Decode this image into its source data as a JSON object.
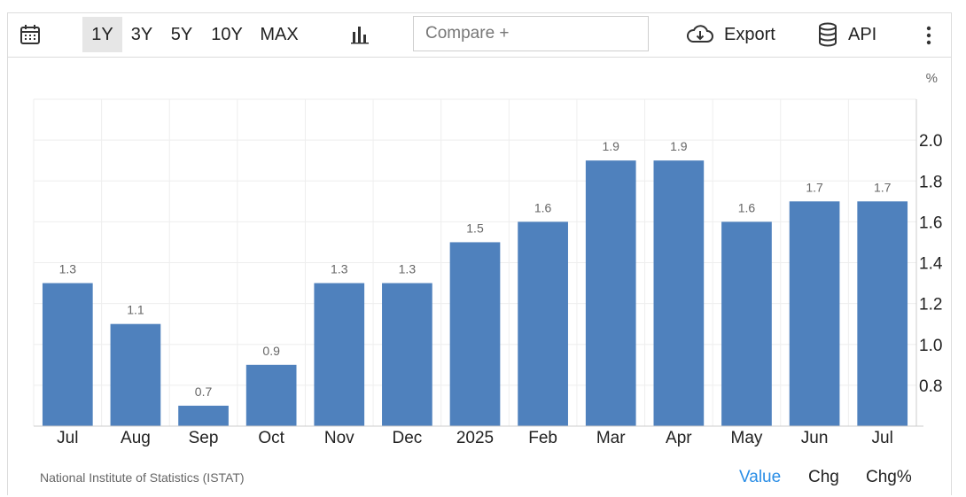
{
  "toolbar": {
    "ranges": [
      "1Y",
      "3Y",
      "5Y",
      "10Y",
      "MAX"
    ],
    "active_range": "1Y",
    "compare_placeholder": "Compare +",
    "export_label": "Export",
    "api_label": "API",
    "icons": [
      "calendar-icon",
      "bar-chart-icon",
      "cloud-download-icon",
      "database-icon",
      "more-vert-icon"
    ]
  },
  "chart_data": {
    "type": "bar",
    "categories": [
      "Jul",
      "Aug",
      "Sep",
      "Oct",
      "Nov",
      "Dec",
      "2025",
      "Feb",
      "Mar",
      "Apr",
      "May",
      "Jun",
      "Jul"
    ],
    "values": [
      1.3,
      1.1,
      0.7,
      0.9,
      1.3,
      1.3,
      1.5,
      1.6,
      1.9,
      1.9,
      1.6,
      1.7,
      1.7
    ],
    "data_labels": [
      "1.3",
      "1.1",
      "0.7",
      "0.9",
      "1.3",
      "1.3",
      "1.5",
      "1.6",
      "1.9",
      "1.9",
      "1.6",
      "1.7",
      "1.7"
    ],
    "y_unit": "%",
    "y_ticks": [
      "0.8",
      "1.0",
      "1.2",
      "1.4",
      "1.6",
      "1.8",
      "2.0"
    ],
    "ylim": [
      0.6,
      2.2
    ],
    "y_axis_side": "right",
    "grid": true,
    "bar_color": "#4f81bd"
  },
  "footer": {
    "source": "National Institute of Statistics (ISTAT)",
    "tabs": [
      "Value",
      "Chg",
      "Chg%"
    ],
    "active_tab": "Value",
    "active_color": "#2a8ee6"
  }
}
